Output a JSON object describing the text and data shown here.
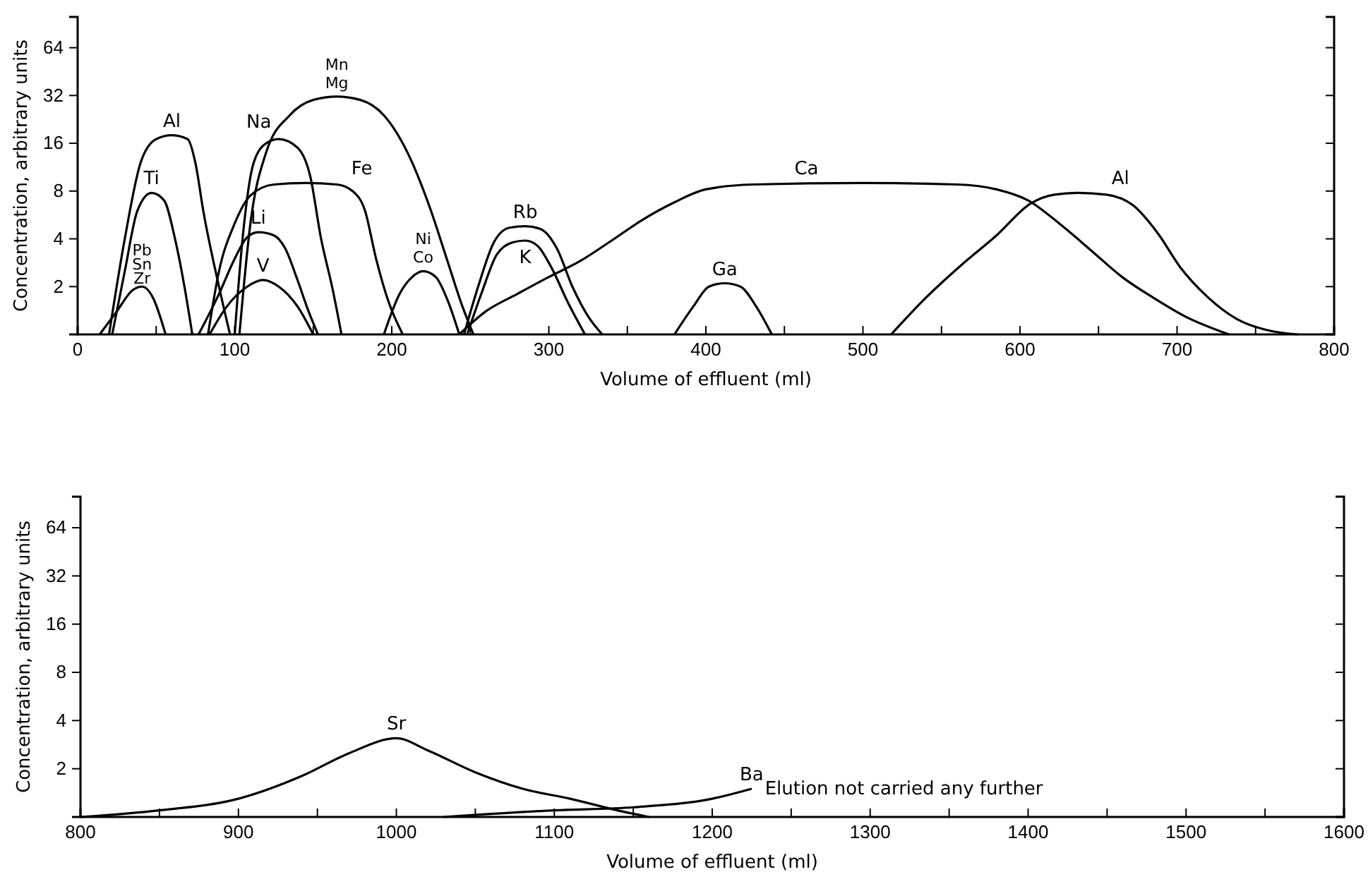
{
  "chart_data": [
    {
      "type": "line",
      "xlabel": "Volume of effluent (ml)",
      "ylabel": "Concentration, arbitrary units",
      "log": "y",
      "line_style": "solid",
      "xlim": [
        0,
        800
      ],
      "xticks": [
        0,
        {
          "value": 50,
          "label": null
        },
        100,
        {
          "value": 150,
          "label": null
        },
        200,
        {
          "value": 250,
          "label": null
        },
        300,
        {
          "value": 350,
          "label": null
        },
        400,
        {
          "value": 450,
          "label": null
        },
        500,
        {
          "value": 550,
          "label": null
        },
        600,
        {
          "value": 650,
          "label": null
        },
        700,
        {
          "value": 750,
          "label": null
        },
        800
      ],
      "ylim": [
        1,
        100
      ],
      "yticks": [
        2,
        4,
        8,
        16,
        32,
        64
      ],
      "series": [
        {
          "name": "Pb Sn Zr",
          "color": "#000000",
          "x": [
            14,
            25,
            35,
            41,
            48,
            56
          ],
          "values": [
            1,
            1.4,
            1.9,
            2,
            1.7,
            1
          ]
        },
        {
          "name": "Ti",
          "color": "#000000",
          "x": [
            22,
            30,
            38,
            47,
            55,
            62,
            68,
            73
          ],
          "values": [
            1,
            2.5,
            6,
            7.8,
            7,
            4,
            2,
            1
          ]
        },
        {
          "name": "Al",
          "color": "#000000",
          "x": [
            20,
            30,
            40,
            50,
            60,
            70,
            75,
            80,
            90,
            97
          ],
          "values": [
            1,
            4,
            12,
            17,
            18,
            17,
            12,
            6,
            2,
            1
          ]
        },
        {
          "name": "Li",
          "color": "#000000",
          "x": [
            77,
            90,
            100,
            108,
            115,
            125,
            132,
            140,
            147,
            153
          ],
          "values": [
            1,
            1.8,
            3,
            4.1,
            4.4,
            4.2,
            3.5,
            2.2,
            1.4,
            1
          ]
        },
        {
          "name": "V",
          "color": "#000000",
          "x": [
            84,
            95,
            108,
            118,
            128,
            140,
            150
          ],
          "values": [
            1,
            1.5,
            2,
            2.2,
            2,
            1.5,
            1
          ]
        },
        {
          "name": "Fe",
          "color": "#000000",
          "x": [
            83,
            90,
            100,
            110,
            125,
            145,
            165,
            175,
            183,
            190,
            198,
            207
          ],
          "values": [
            1,
            2.5,
            5,
            7.5,
            8.8,
            9,
            8.8,
            8,
            6,
            3,
            1.6,
            1
          ]
        },
        {
          "name": "Na",
          "color": "#000000",
          "x": [
            100,
            105,
            112,
            120,
            128,
            140,
            148,
            155,
            162,
            168
          ],
          "values": [
            1,
            4,
            12,
            16,
            17,
            15,
            10,
            4,
            2,
            1
          ]
        },
        {
          "name": "Mn Mg",
          "color": "#000000",
          "x": [
            103,
            110,
            120,
            135,
            150,
            165,
            180,
            195,
            210,
            225,
            235,
            245,
            252
          ],
          "values": [
            1,
            5,
            14,
            24,
            30,
            31.5,
            30,
            24,
            14,
            6,
            3,
            1.5,
            1
          ]
        },
        {
          "name": "Ni Co",
          "color": "#000000",
          "x": [
            195,
            205,
            213,
            220,
            228,
            236,
            243
          ],
          "values": [
            1,
            1.8,
            2.3,
            2.5,
            2.3,
            1.6,
            1
          ]
        },
        {
          "name": "Rb",
          "color": "#000000",
          "x": [
            246,
            255,
            265,
            275,
            285,
            295,
            305,
            315,
            325,
            334
          ],
          "values": [
            1,
            2,
            3.8,
            4.7,
            4.8,
            4.6,
            3.5,
            2,
            1.3,
            1
          ]
        },
        {
          "name": "K",
          "color": "#000000",
          "x": [
            248,
            257,
            267,
            277,
            285,
            293,
            302,
            312,
            323
          ],
          "values": [
            1,
            1.8,
            3.2,
            3.8,
            3.9,
            3.6,
            2.6,
            1.6,
            1
          ]
        },
        {
          "name": "Ca",
          "color": "#000000",
          "x": [
            243,
            260,
            280,
            300,
            320,
            340,
            360,
            380,
            400,
            430,
            500,
            560,
            585,
            605,
            625,
            645,
            665,
            685,
            705,
            733
          ],
          "values": [
            1,
            1.4,
            1.8,
            2.3,
            2.9,
            3.9,
            5.3,
            6.8,
            8.2,
            8.8,
            9,
            8.8,
            8.2,
            7,
            5,
            3.4,
            2.3,
            1.7,
            1.3,
            1
          ]
        },
        {
          "name": "Ga",
          "color": "#000000",
          "x": [
            380,
            392,
            402,
            412,
            422,
            432,
            442
          ],
          "values": [
            1,
            1.5,
            2,
            2.1,
            2,
            1.5,
            1
          ]
        },
        {
          "name": "Al",
          "color": "#000000",
          "x": [
            518,
            540,
            562,
            585,
            607,
            622,
            637,
            655,
            672,
            688,
            702,
            720,
            738,
            760,
            777
          ],
          "values": [
            1,
            1.7,
            2.7,
            4.2,
            6.7,
            7.6,
            7.8,
            7.6,
            6.5,
            4.3,
            2.65,
            1.7,
            1.25,
            1.05,
            1
          ]
        }
      ]
    },
    {
      "type": "line",
      "xlabel": "Volume of effluent (ml)",
      "ylabel": "Concentration, arbitrary units",
      "log": "y",
      "line_style": "solid",
      "xlim": [
        800,
        1600
      ],
      "xticks": [
        800,
        {
          "value": 850,
          "label": null
        },
        900,
        {
          "value": 950,
          "label": null
        },
        1000,
        {
          "value": 1050,
          "label": null
        },
        1100,
        {
          "value": 1150,
          "label": null
        },
        1200,
        {
          "value": 1250,
          "label": null
        },
        1300,
        {
          "value": 1350,
          "label": null
        },
        1400,
        {
          "value": 1450,
          "label": null
        },
        1500,
        {
          "value": 1550,
          "label": null
        },
        1600
      ],
      "ylim": [
        1,
        100
      ],
      "yticks": [
        2,
        4,
        8,
        16,
        32,
        64
      ],
      "annotations": [
        {
          "text": "Elution not carried any further",
          "x": 1228,
          "y": 1.5
        }
      ],
      "series": [
        {
          "name": "Sr",
          "color": "#000000",
          "x": [
            800,
            850,
            900,
            940,
            970,
            1000,
            1020,
            1050,
            1080,
            1110,
            1140,
            1160
          ],
          "values": [
            1,
            1.1,
            1.3,
            1.8,
            2.5,
            3.1,
            2.6,
            1.9,
            1.5,
            1.3,
            1.1,
            1
          ]
        },
        {
          "name": "Ba",
          "color": "#000000",
          "x": [
            1030,
            1100,
            1150,
            1200,
            1225
          ],
          "values": [
            1,
            1.1,
            1.15,
            1.3,
            1.5
          ]
        }
      ]
    }
  ]
}
